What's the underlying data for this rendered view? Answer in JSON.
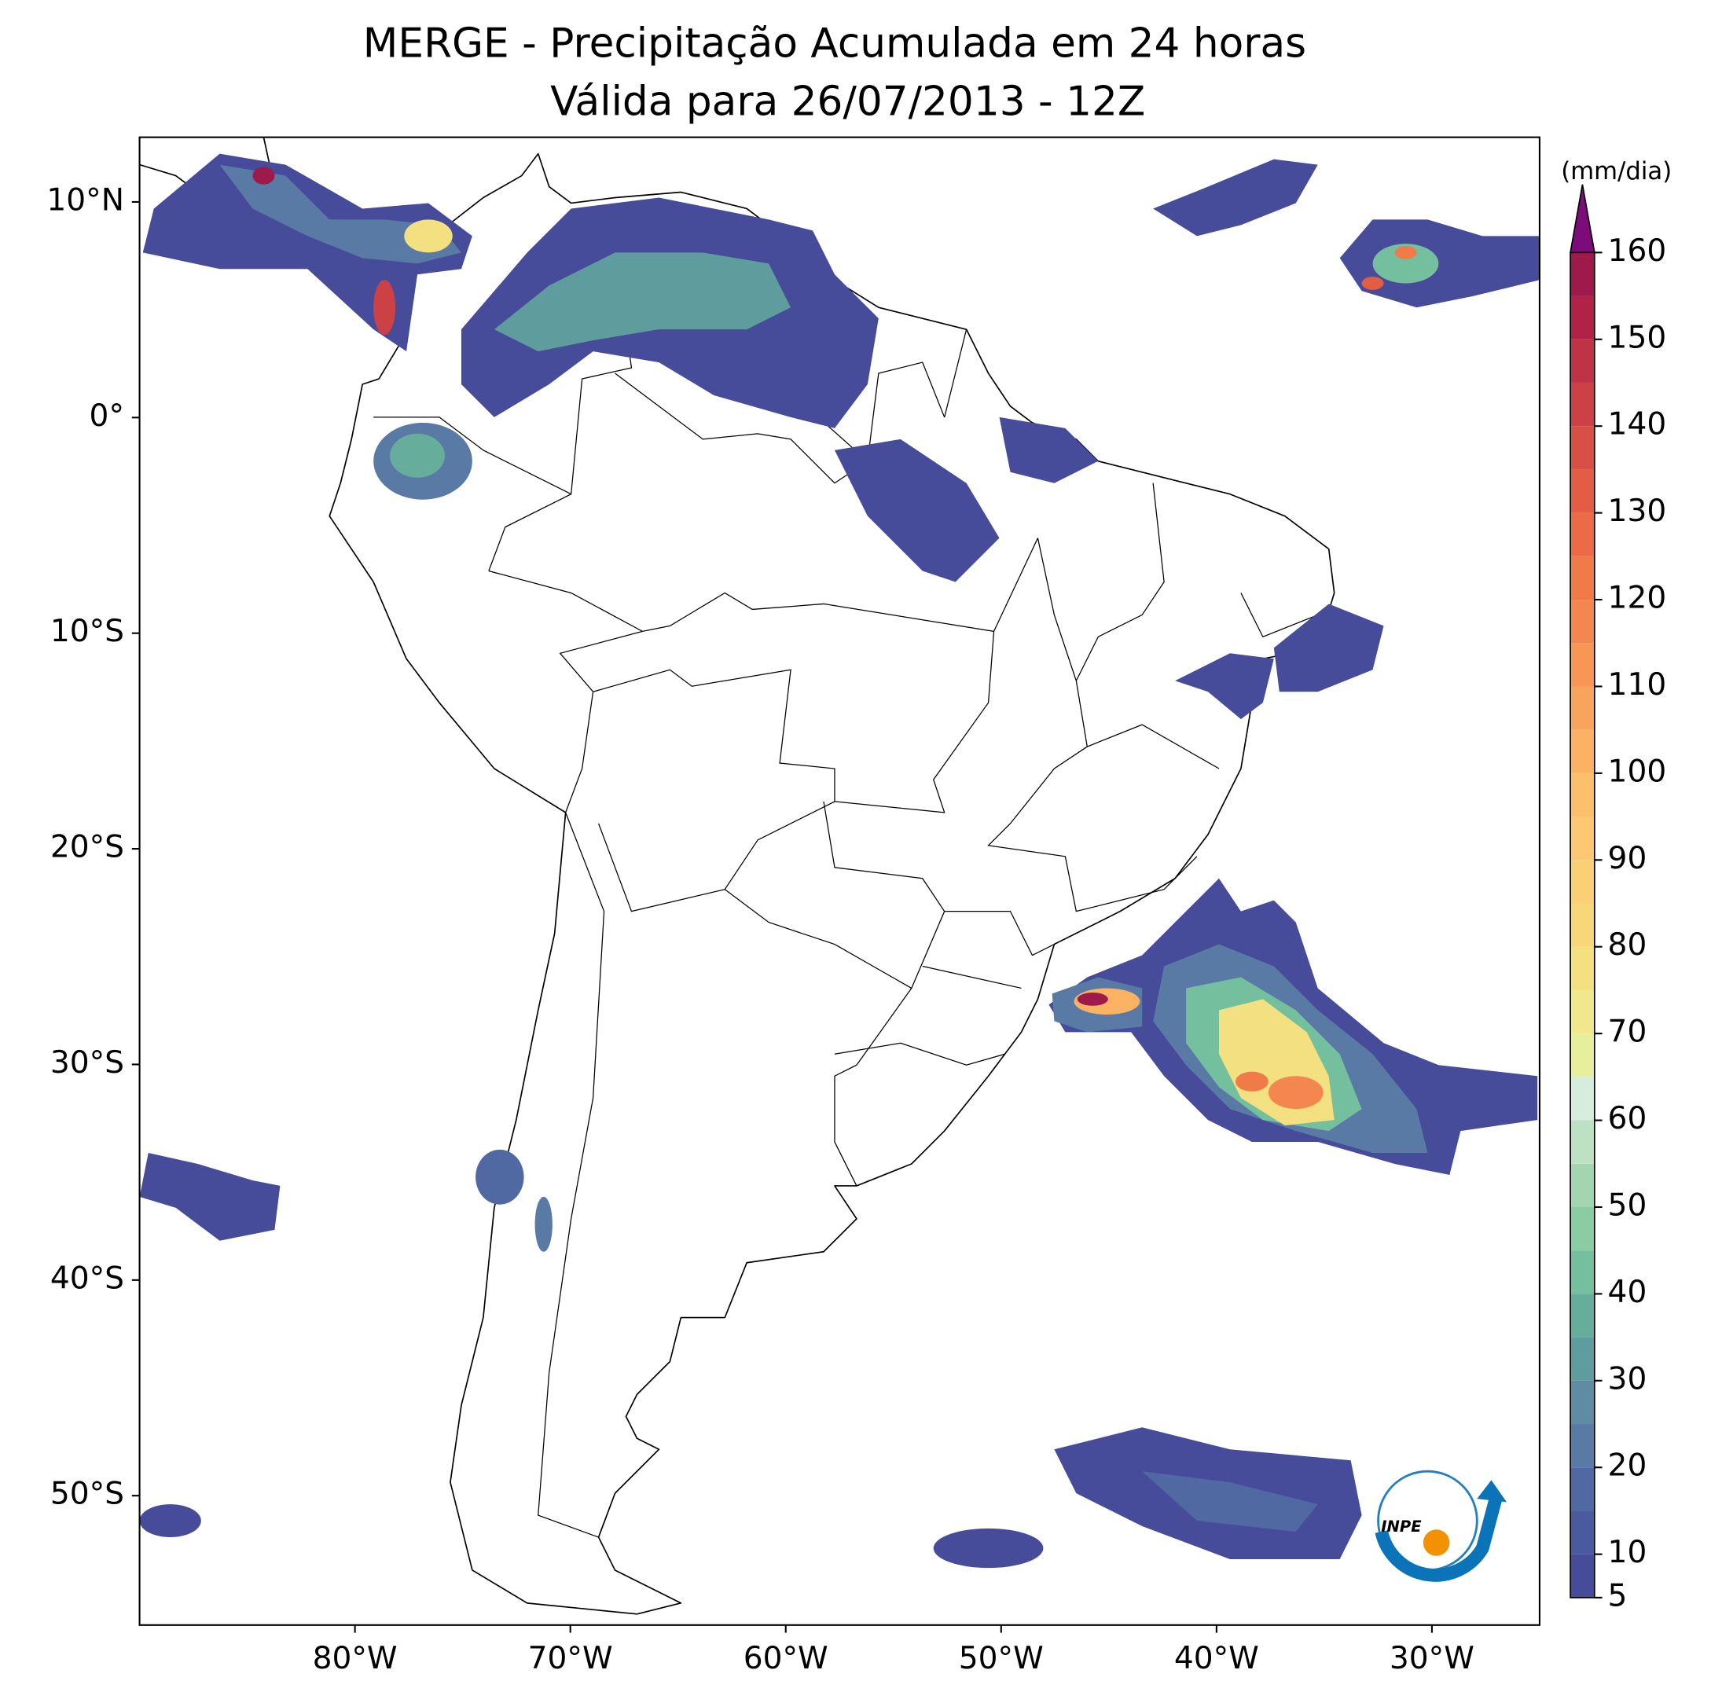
{
  "chart_data": {
    "type": "map",
    "title": "MERGE - Precipitação Acumulada em 24 horas",
    "subtitle": "Válida para 26/07/2013 - 12Z",
    "xlim": [
      -90,
      -25
    ],
    "ylim": [
      -56,
      13
    ],
    "xticks": [
      {
        "value": -80,
        "label": "80°W"
      },
      {
        "value": -70,
        "label": "70°W"
      },
      {
        "value": -60,
        "label": "60°W"
      },
      {
        "value": -50,
        "label": "50°W"
      },
      {
        "value": -40,
        "label": "40°W"
      },
      {
        "value": -30,
        "label": "30°W"
      }
    ],
    "yticks": [
      {
        "value": 10,
        "label": "10°N"
      },
      {
        "value": 0,
        "label": "0°"
      },
      {
        "value": -10,
        "label": "10°S"
      },
      {
        "value": -20,
        "label": "20°S"
      },
      {
        "value": -30,
        "label": "30°S"
      },
      {
        "value": -40,
        "label": "40°S"
      },
      {
        "value": -50,
        "label": "50°S"
      }
    ],
    "colorbar": {
      "label": "(mm/dia)",
      "levels": [
        5,
        10,
        15,
        20,
        25,
        30,
        35,
        40,
        45,
        50,
        55,
        60,
        65,
        70,
        75,
        80,
        85,
        90,
        95,
        100,
        105,
        110,
        115,
        120,
        125,
        130,
        135,
        140,
        145,
        150,
        155,
        160
      ],
      "colors": [
        "#464c99",
        "#4b5a9e",
        "#5069a3",
        "#5a7aa6",
        "#5f8ba4",
        "#5e9c9e",
        "#66ae9b",
        "#74bf9e",
        "#8bcca4",
        "#a3d6b0",
        "#bde1c5",
        "#d6ecdc",
        "#e7ee9c",
        "#efe88c",
        "#f3e080",
        "#f7d77a",
        "#fad077",
        "#fcc874",
        "#fcbf6c",
        "#fbb264",
        "#f9a45c",
        "#f79655",
        "#f4874f",
        "#f07a48",
        "#ea6b45",
        "#e25d44",
        "#d84f45",
        "#cc4146",
        "#bf3347",
        "#b02348",
        "#9e1a4b"
      ],
      "ticks": [
        5,
        10,
        20,
        30,
        40,
        50,
        60,
        70,
        80,
        90,
        100,
        110,
        120,
        130,
        140,
        150,
        160
      ],
      "extend": "max",
      "extend_color": "#7b0c7a"
    },
    "logo_text": "INPE"
  }
}
